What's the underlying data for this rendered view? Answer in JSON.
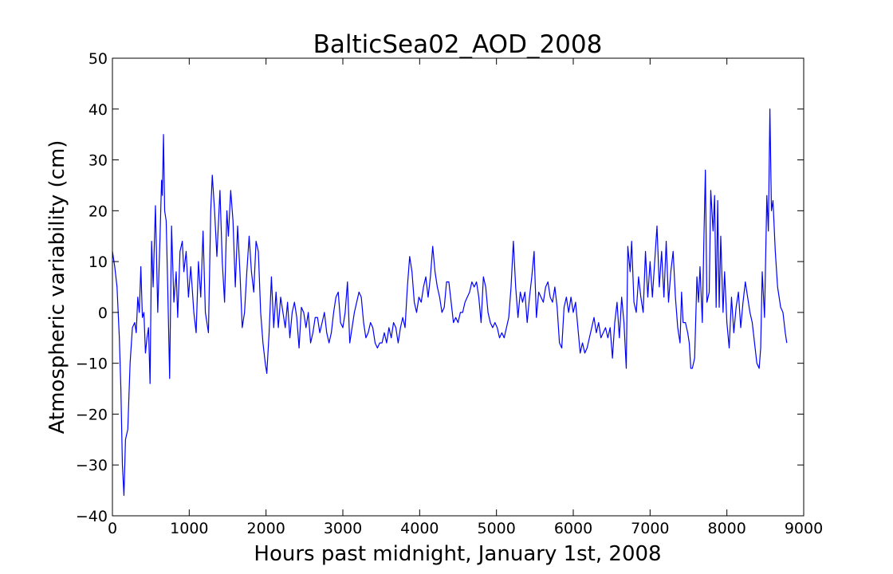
{
  "chart_data": {
    "type": "line",
    "title": "BalticSea02_AOD_2008",
    "x_label": "Hours past midnight, January 1st, 2008",
    "y_label": "Atmospheric variability (cm)",
    "xlim": [
      0,
      9000
    ],
    "ylim": [
      -40,
      50
    ],
    "xticks": [
      0,
      1000,
      2000,
      3000,
      4000,
      5000,
      6000,
      7000,
      8000,
      9000
    ],
    "yticks": [
      {
        "value": -40,
        "label": "−40"
      },
      {
        "value": -30,
        "label": "−30"
      },
      {
        "value": -20,
        "label": "−20"
      },
      {
        "value": -10,
        "label": "−10"
      },
      0,
      10,
      20,
      30,
      40,
      50
    ],
    "series": [
      {
        "color": "#0000ff",
        "x": [
          0,
          30,
          60,
          90,
          110,
          130,
          150,
          170,
          200,
          230,
          260,
          290,
          310,
          330,
          350,
          370,
          390,
          410,
          430,
          450,
          470,
          490,
          510,
          530,
          560,
          590,
          620,
          640,
          650,
          665,
          680,
          700,
          720,
          745,
          770,
          800,
          830,
          850,
          880,
          910,
          930,
          960,
          990,
          1020,
          1060,
          1090,
          1120,
          1150,
          1180,
          1210,
          1250,
          1280,
          1300,
          1330,
          1360,
          1400,
          1430,
          1460,
          1490,
          1510,
          1540,
          1570,
          1600,
          1630,
          1660,
          1690,
          1720,
          1750,
          1780,
          1810,
          1840,
          1870,
          1900,
          1930,
          1960,
          1990,
          2010,
          2040,
          2070,
          2100,
          2130,
          2160,
          2190,
          2220,
          2250,
          2280,
          2310,
          2340,
          2370,
          2400,
          2430,
          2460,
          2490,
          2520,
          2550,
          2580,
          2610,
          2640,
          2670,
          2700,
          2730,
          2760,
          2790,
          2820,
          2850,
          2880,
          2910,
          2940,
          2970,
          3000,
          3030,
          3060,
          3090,
          3120,
          3150,
          3180,
          3210,
          3240,
          3270,
          3300,
          3330,
          3360,
          3390,
          3420,
          3450,
          3480,
          3510,
          3540,
          3570,
          3600,
          3630,
          3660,
          3690,
          3720,
          3750,
          3780,
          3810,
          3840,
          3870,
          3900,
          3930,
          3960,
          3990,
          4020,
          4050,
          4080,
          4110,
          4140,
          4170,
          4200,
          4230,
          4260,
          4290,
          4320,
          4350,
          4380,
          4410,
          4440,
          4470,
          4500,
          4530,
          4560,
          4590,
          4620,
          4650,
          4680,
          4710,
          4740,
          4770,
          4800,
          4830,
          4860,
          4890,
          4920,
          4950,
          4980,
          5010,
          5040,
          5070,
          5100,
          5130,
          5160,
          5190,
          5220,
          5250,
          5280,
          5310,
          5340,
          5370,
          5400,
          5430,
          5460,
          5490,
          5520,
          5550,
          5580,
          5610,
          5640,
          5670,
          5700,
          5730,
          5760,
          5790,
          5820,
          5850,
          5880,
          5910,
          5940,
          5970,
          6000,
          6030,
          6060,
          6090,
          6120,
          6150,
          6180,
          6210,
          6240,
          6270,
          6300,
          6330,
          6360,
          6390,
          6420,
          6450,
          6480,
          6510,
          6540,
          6570,
          6600,
          6630,
          6660,
          6690,
          6710,
          6740,
          6760,
          6790,
          6820,
          6850,
          6880,
          6910,
          6940,
          6970,
          7000,
          7030,
          7060,
          7090,
          7120,
          7150,
          7180,
          7210,
          7240,
          7270,
          7300,
          7330,
          7360,
          7390,
          7410,
          7430,
          7460,
          7490,
          7510,
          7530,
          7550,
          7580,
          7610,
          7630,
          7650,
          7680,
          7700,
          7720,
          7740,
          7770,
          7790,
          7820,
          7840,
          7860,
          7880,
          7900,
          7920,
          7950,
          7970,
          8000,
          8030,
          8060,
          8090,
          8120,
          8150,
          8180,
          8210,
          8240,
          8270,
          8300,
          8330,
          8360,
          8390,
          8420,
          8440,
          8460,
          8490,
          8520,
          8540,
          8560,
          8580,
          8600,
          8630,
          8660,
          8680,
          8700,
          8730,
          8760,
          8780
        ],
        "values": [
          12,
          9,
          5,
          -5,
          -15,
          -30,
          -36,
          -25,
          -23,
          -10,
          -3,
          -2,
          -4,
          3,
          0,
          9,
          -1,
          0,
          -8,
          -5,
          -3,
          -14,
          14,
          5,
          21,
          0,
          15,
          26,
          23,
          35,
          20,
          18,
          5,
          -13,
          17,
          2,
          8,
          -1,
          12,
          14,
          8,
          12,
          3,
          9,
          0,
          -4,
          10,
          3,
          16,
          0,
          -4,
          20,
          27,
          20,
          11,
          24,
          10,
          2,
          20,
          15,
          24,
          18,
          5,
          17,
          8,
          -3,
          0,
          8,
          15,
          8,
          4,
          14,
          12,
          0,
          -6,
          -10,
          -12,
          -4,
          7,
          -3,
          4,
          -3,
          3,
          0,
          -3,
          2,
          -5,
          0,
          2,
          -1,
          -7,
          1,
          0,
          -3,
          0,
          -6,
          -4,
          -1,
          -1,
          -4,
          -2,
          0,
          -4,
          -6,
          -4,
          0,
          3,
          4,
          -2,
          -3,
          0,
          6,
          -6,
          -3,
          0,
          2,
          4,
          3,
          -2,
          -5,
          -4,
          -2,
          -3,
          -6,
          -7,
          -6,
          -6,
          -4,
          -6,
          -3,
          -5,
          -2,
          -3,
          -6,
          -3,
          -1,
          -3,
          5,
          11,
          8,
          2,
          0,
          3,
          2,
          5,
          7,
          3,
          7,
          13,
          8,
          5,
          3,
          0,
          1,
          6,
          6,
          2,
          -2,
          -1,
          -2,
          0,
          0,
          2,
          3,
          4,
          6,
          5,
          6,
          3,
          -2,
          7,
          5,
          0,
          -2,
          -3,
          -2,
          -3,
          -5,
          -4,
          -5,
          -3,
          -1,
          5,
          14,
          5,
          -1,
          4,
          2,
          4,
          -2,
          3,
          7,
          12,
          -1,
          4,
          3,
          2,
          5,
          6,
          3,
          2,
          5,
          1,
          -6,
          -7,
          1,
          3,
          0,
          3,
          0,
          2,
          -3,
          -8,
          -6,
          -8,
          -7,
          -5,
          -3,
          -1,
          -4,
          -2,
          -5,
          -4,
          -3,
          -5,
          -3,
          -9,
          -2,
          2,
          -5,
          3,
          -2,
          -11,
          13,
          8,
          14,
          2,
          0,
          7,
          3,
          0,
          12,
          3,
          10,
          3,
          10,
          17,
          5,
          12,
          3,
          14,
          2,
          8,
          12,
          3,
          -3,
          -6,
          4,
          -2,
          -2,
          -4,
          -6,
          -11,
          -11,
          -9,
          7,
          2,
          9,
          -2,
          14,
          28,
          2,
          4,
          24,
          16,
          23,
          1,
          22,
          1,
          15,
          0,
          8,
          -2,
          -7,
          3,
          -4,
          1,
          4,
          -3,
          2,
          6,
          3,
          0,
          -2,
          -6,
          -10,
          -11,
          -7,
          8,
          -1,
          23,
          16,
          40,
          20,
          22,
          12,
          5,
          3,
          1,
          0,
          -4,
          -6
        ]
      }
    ]
  }
}
